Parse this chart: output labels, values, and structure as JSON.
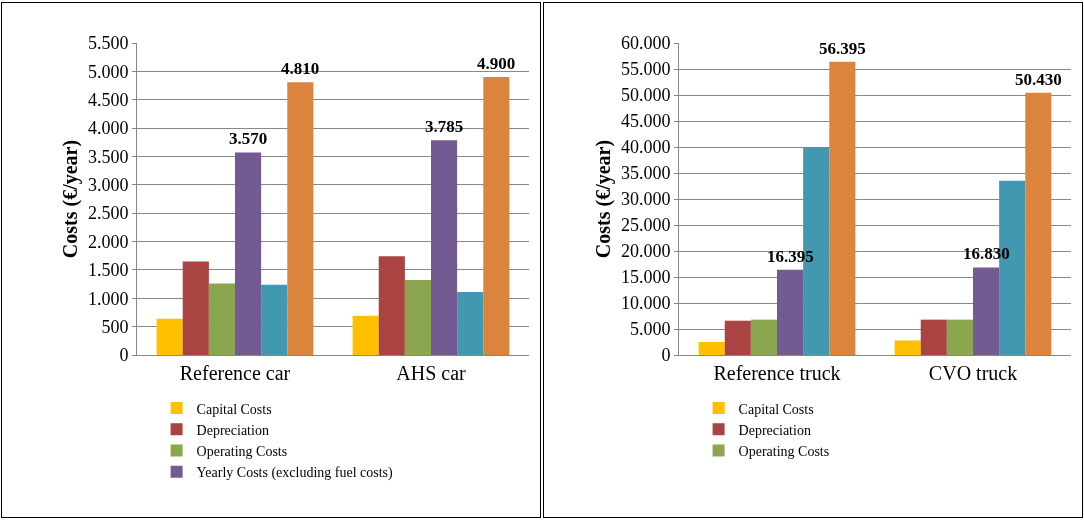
{
  "chart_data": [
    {
      "type": "bar",
      "ylabel": "Costs (€/year)",
      "categories": [
        "Reference car",
        "AHS car"
      ],
      "ylim": [
        0,
        5500
      ],
      "yticks": [
        {
          "value": 0,
          "label": "0"
        },
        {
          "value": 500,
          "label": "500"
        },
        {
          "value": 1000,
          "label": "1.000"
        },
        {
          "value": 1500,
          "label": "1.500"
        },
        {
          "value": 2000,
          "label": "2.000"
        },
        {
          "value": 2500,
          "label": "2.500"
        },
        {
          "value": 3000,
          "label": "3.000"
        },
        {
          "value": 3500,
          "label": "3.500"
        },
        {
          "value": 4000,
          "label": "4.000"
        },
        {
          "value": 4500,
          "label": "4.500"
        },
        {
          "value": 5000,
          "label": "5.000"
        },
        {
          "value": 5500,
          "label": "5.500"
        }
      ],
      "grid": "y",
      "legend": "bottom",
      "series": [
        {
          "name": "Capital Costs",
          "color": "#ffc000",
          "values": [
            640,
            690
          ]
        },
        {
          "name": "Depreciation",
          "color": "#a94442",
          "values": [
            1650,
            1740
          ]
        },
        {
          "name": "Operating Costs",
          "color": "#8aa64e",
          "values": [
            1260,
            1320
          ]
        },
        {
          "name": "Yearly Costs (excluding fuel costs)",
          "color": "#735a92",
          "values": [
            3570,
            3785
          ],
          "value_labels": [
            "3.570",
            "3.785"
          ]
        },
        {
          "color": "#4298b0",
          "values": [
            1240,
            1110
          ]
        },
        {
          "color": "#db843d",
          "values": [
            4810,
            4900
          ],
          "value_labels": [
            "4.810",
            "4.900"
          ]
        }
      ]
    },
    {
      "type": "bar",
      "ylabel": "Costs (€/year)",
      "categories": [
        "Reference truck",
        "CVO truck"
      ],
      "ylim": [
        0,
        60000
      ],
      "yticks": [
        {
          "value": 0,
          "label": "0"
        },
        {
          "value": 5000,
          "label": "5.000"
        },
        {
          "value": 10000,
          "label": "10.000"
        },
        {
          "value": 15000,
          "label": "15.000"
        },
        {
          "value": 20000,
          "label": "20.000"
        },
        {
          "value": 25000,
          "label": "25.000"
        },
        {
          "value": 30000,
          "label": "30.000"
        },
        {
          "value": 35000,
          "label": "35.000"
        },
        {
          "value": 40000,
          "label": "40.000"
        },
        {
          "value": 45000,
          "label": "45.000"
        },
        {
          "value": 50000,
          "label": "50.000"
        },
        {
          "value": 55000,
          "label": "55.000"
        },
        {
          "value": 60000,
          "label": "60.000"
        }
      ],
      "grid": "y",
      "legend": "bottom",
      "series": [
        {
          "name": "Capital Costs",
          "color": "#ffc000",
          "values": [
            2500,
            2800
          ]
        },
        {
          "name": "Depreciation",
          "color": "#a94442",
          "values": [
            6600,
            6800
          ]
        },
        {
          "name": "Operating Costs",
          "color": "#8aa64e",
          "values": [
            6800,
            6800
          ]
        },
        {
          "color": "#735a92",
          "values": [
            16395,
            16830
          ],
          "value_labels": [
            "16.395",
            "16.830"
          ]
        },
        {
          "color": "#4298b0",
          "values": [
            40000,
            33500
          ]
        },
        {
          "color": "#db843d",
          "values": [
            56395,
            50430
          ],
          "value_labels": [
            "56.395",
            "50.430"
          ]
        }
      ]
    }
  ]
}
